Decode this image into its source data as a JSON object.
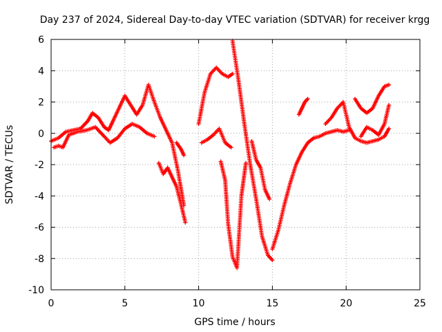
{
  "chart_data": {
    "type": "scatter",
    "title": "Day 237 of 2024, Sidereal Day-to-day VTEC variation (SDTVAR) for receiver krgg",
    "xlabel": "GPS time / hours",
    "ylabel": "SDTVAR / TECUs",
    "xlim": [
      0,
      25
    ],
    "ylim": [
      -10,
      6
    ],
    "xticks": [
      0,
      5,
      10,
      15,
      20,
      25
    ],
    "yticks": [
      -10,
      -8,
      -6,
      -4,
      -2,
      0,
      2,
      4,
      6
    ],
    "grid": true,
    "marker": "+",
    "color": "#ff0000",
    "series": [
      {
        "name": "arc-main",
        "x": [
          0.0,
          0.5,
          1.0,
          1.5,
          2.0,
          2.5,
          2.8,
          3.2,
          3.6,
          3.9,
          4.2,
          4.6,
          5.0,
          5.4,
          5.8,
          6.2,
          6.6,
          7.0,
          7.4,
          7.8,
          8.2,
          8.6,
          9.0
        ],
        "y": [
          -0.5,
          -0.3,
          0.1,
          0.2,
          0.3,
          0.8,
          1.3,
          1.0,
          0.4,
          0.2,
          0.8,
          1.6,
          2.4,
          1.8,
          1.2,
          1.8,
          3.1,
          2.0,
          1.0,
          0.2,
          -0.6,
          -2.4,
          -4.6
        ]
      },
      {
        "name": "arc-low",
        "x": [
          0.2,
          0.5,
          0.8,
          1.2,
          1.8,
          2.4,
          3.0,
          3.6,
          4.0,
          4.5,
          5.0,
          5.5,
          6.0,
          6.5,
          7.0
        ],
        "y": [
          -0.9,
          -0.8,
          -0.9,
          -0.1,
          0.1,
          0.2,
          0.4,
          -0.2,
          -0.6,
          -0.3,
          0.3,
          0.6,
          0.4,
          0.0,
          -0.2
        ]
      },
      {
        "name": "arc-drop-a",
        "x": [
          7.3,
          7.6,
          7.9,
          8.2,
          8.5,
          8.8,
          9.1
        ],
        "y": [
          -1.9,
          -2.6,
          -2.2,
          -2.8,
          -3.4,
          -4.5,
          -5.7
        ]
      },
      {
        "name": "arc-11h",
        "x": [
          10.0,
          10.4,
          10.8,
          11.2,
          11.6,
          12.0,
          12.3
        ],
        "y": [
          0.6,
          2.6,
          3.8,
          4.2,
          3.8,
          3.6,
          3.8
        ]
      },
      {
        "name": "arc-11h-b",
        "x": [
          10.2,
          10.6,
          11.0,
          11.4,
          11.8,
          12.2
        ],
        "y": [
          -0.6,
          -0.4,
          -0.1,
          0.3,
          -0.6,
          -0.9
        ]
      },
      {
        "name": "arc-12h-drop",
        "x": [
          11.5,
          11.8,
          12.0,
          12.3,
          12.6,
          12.9,
          13.2
        ],
        "y": [
          -1.8,
          -3.0,
          -5.8,
          -7.9,
          -8.6,
          -4.0,
          -1.9
        ]
      },
      {
        "name": "arc-13h",
        "x": [
          12.3,
          12.7,
          13.1,
          13.5,
          13.9,
          14.3,
          14.7,
          15.0
        ],
        "y": [
          5.9,
          3.4,
          0.6,
          -2.0,
          -4.2,
          -6.6,
          -7.8,
          -8.1
        ]
      },
      {
        "name": "arc-recovery",
        "x": [
          15.0,
          15.4,
          15.8,
          16.2,
          16.6,
          17.0,
          17.4,
          17.8,
          18.2,
          18.6,
          19.0,
          19.4,
          19.8,
          20.2
        ],
        "y": [
          -7.4,
          -6.2,
          -4.6,
          -3.2,
          -2.0,
          -1.2,
          -0.6,
          -0.3,
          -0.2,
          0.0,
          0.1,
          0.2,
          0.1,
          0.2
        ]
      },
      {
        "name": "arc-late-high",
        "x": [
          16.8,
          17.0,
          17.2,
          17.4
        ],
        "y": [
          1.2,
          1.6,
          2.0,
          2.2
        ]
      },
      {
        "name": "arc-late",
        "x": [
          18.6,
          19.0,
          19.4,
          19.8,
          20.2,
          20.6,
          21.0,
          21.4,
          21.8,
          22.2,
          22.6,
          22.9
        ],
        "y": [
          0.6,
          1.0,
          1.6,
          2.0,
          0.4,
          -0.3,
          -0.5,
          -0.6,
          -0.5,
          -0.4,
          -0.2,
          0.3
        ]
      },
      {
        "name": "arc-late-b",
        "x": [
          20.6,
          21.0,
          21.4,
          21.8,
          22.2,
          22.6,
          22.9
        ],
        "y": [
          2.2,
          1.6,
          1.3,
          1.6,
          2.4,
          3.0,
          3.1
        ]
      },
      {
        "name": "arc-late-c",
        "x": [
          21.0,
          21.4,
          21.8,
          22.2,
          22.6,
          22.9
        ],
        "y": [
          -0.2,
          0.4,
          0.2,
          -0.1,
          0.6,
          1.8
        ]
      },
      {
        "name": "arc-14h",
        "x": [
          13.6,
          13.9,
          14.2,
          14.5,
          14.8
        ],
        "y": [
          -0.5,
          -1.7,
          -2.2,
          -3.6,
          -4.2
        ]
      },
      {
        "name": "arc-mid-bump",
        "x": [
          8.5,
          8.8,
          9.0
        ],
        "y": [
          -0.6,
          -1.0,
          -1.4
        ]
      }
    ]
  }
}
